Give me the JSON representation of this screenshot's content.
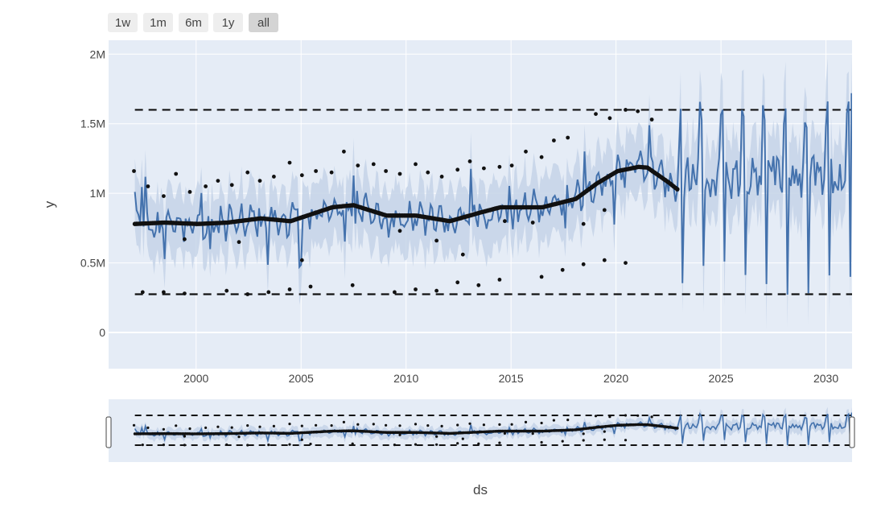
{
  "range_selector": {
    "buttons": [
      {
        "label": "1w",
        "active": false
      },
      {
        "label": "1m",
        "active": false
      },
      {
        "label": "6m",
        "active": false
      },
      {
        "label": "1y",
        "active": false
      },
      {
        "label": "all",
        "active": true
      }
    ]
  },
  "colors": {
    "plot_bg": "#e5ecf6",
    "grid": "#ffffff",
    "forecast_line": "#4472ad",
    "uncertainty_band": "#c6d3e8",
    "observed_points": "#111111",
    "capacity_lines": "#111111",
    "button_bg": "#eeeeee",
    "button_active_bg": "#d4d4d4",
    "text": "#444444"
  },
  "chart_data": {
    "type": "line",
    "title": "",
    "xlabel": "ds",
    "ylabel": "y",
    "x_type": "date",
    "xlim": [
      "1995-11-01",
      "2031-03-31"
    ],
    "ylim": [
      -260000,
      2100000
    ],
    "x_ticks": [
      "2000",
      "2005",
      "2010",
      "2015",
      "2020",
      "2025",
      "2030"
    ],
    "y_ticks": [
      {
        "value": 0,
        "label": "0"
      },
      {
        "value": 500000,
        "label": "0.5M"
      },
      {
        "value": 1000000,
        "label": "1M"
      },
      {
        "value": 1500000,
        "label": "1.5M"
      },
      {
        "value": 2000000,
        "label": "2M"
      }
    ],
    "grid": true,
    "legend": "none",
    "cap": 1600000,
    "floor": 275000,
    "history_start": "1997-01-31",
    "history_end": "2022-12-31",
    "forecast_end": "2031-03-31",
    "trend_knots": [
      [
        "1997-01-31",
        780000
      ],
      [
        "1998-06-30",
        790000
      ],
      [
        "2000-01-31",
        780000
      ],
      [
        "2001-06-30",
        790000
      ],
      [
        "2003-01-31",
        820000
      ],
      [
        "2004-06-30",
        800000
      ],
      [
        "2005-06-30",
        850000
      ],
      [
        "2006-06-30",
        900000
      ],
      [
        "2007-06-30",
        915000
      ],
      [
        "2009-01-31",
        840000
      ],
      [
        "2010-06-30",
        840000
      ],
      [
        "2012-01-31",
        800000
      ],
      [
        "2013-06-30",
        860000
      ],
      [
        "2014-06-30",
        900000
      ],
      [
        "2016-06-30",
        900000
      ],
      [
        "2018-01-31",
        960000
      ],
      [
        "2019-01-31",
        1070000
      ],
      [
        "2020-01-31",
        1160000
      ],
      [
        "2021-01-31",
        1190000
      ],
      [
        "2021-06-30",
        1185000
      ],
      [
        "2022-06-30",
        1080000
      ],
      [
        "2022-12-31",
        1020000
      ]
    ],
    "annual_peaks": [
      [
        "1997-01-15",
        1160000
      ],
      [
        "1997-09-15",
        1050000
      ],
      [
        "1998-06-15",
        980000
      ],
      [
        "1999-01-15",
        1140000
      ],
      [
        "1999-09-15",
        1010000
      ],
      [
        "2000-06-15",
        1050000
      ],
      [
        "2001-01-15",
        1090000
      ],
      [
        "2001-09-15",
        1060000
      ],
      [
        "2002-06-15",
        1150000
      ],
      [
        "2003-01-15",
        1090000
      ],
      [
        "2003-09-15",
        1120000
      ],
      [
        "2004-06-15",
        1220000
      ],
      [
        "2005-01-15",
        1130000
      ],
      [
        "2005-09-15",
        1160000
      ],
      [
        "2006-06-15",
        1150000
      ],
      [
        "2007-01-15",
        1300000
      ],
      [
        "2007-09-15",
        1200000
      ],
      [
        "2008-06-15",
        1210000
      ],
      [
        "2009-01-15",
        1160000
      ],
      [
        "2009-09-15",
        1140000
      ],
      [
        "2010-06-15",
        1210000
      ],
      [
        "2011-01-15",
        1150000
      ],
      [
        "2011-09-15",
        1120000
      ],
      [
        "2012-06-15",
        1170000
      ],
      [
        "2013-01-15",
        1230000
      ],
      [
        "2013-09-15",
        1180000
      ],
      [
        "2014-06-15",
        1190000
      ],
      [
        "2015-01-15",
        1200000
      ],
      [
        "2015-09-15",
        1300000
      ],
      [
        "2016-06-15",
        1260000
      ],
      [
        "2017-01-15",
        1380000
      ],
      [
        "2017-09-15",
        1400000
      ],
      [
        "2019-01-15",
        1570000
      ],
      [
        "2019-09-15",
        1540000
      ],
      [
        "2020-06-15",
        1600000
      ],
      [
        "2021-01-15",
        1590000
      ],
      [
        "2021-09-15",
        1530000
      ]
    ],
    "annual_troughs": [
      [
        "1997-06-15",
        290000
      ],
      [
        "1998-06-15",
        290000
      ],
      [
        "1999-06-15",
        280000
      ],
      [
        "2001-06-15",
        300000
      ],
      [
        "2002-06-15",
        275000
      ],
      [
        "2003-06-15",
        290000
      ],
      [
        "2004-06-15",
        310000
      ],
      [
        "2005-06-15",
        330000
      ],
      [
        "2007-06-15",
        340000
      ],
      [
        "2009-06-15",
        290000
      ],
      [
        "2010-06-15",
        310000
      ],
      [
        "2011-06-15",
        300000
      ],
      [
        "2012-06-15",
        360000
      ],
      [
        "2013-06-15",
        340000
      ],
      [
        "2014-06-15",
        380000
      ],
      [
        "2016-06-15",
        400000
      ],
      [
        "2017-06-15",
        450000
      ],
      [
        "2018-06-15",
        490000
      ],
      [
        "2019-06-15",
        520000
      ],
      [
        "2020-06-15",
        500000
      ]
    ],
    "mid_outliers": [
      [
        "1999-06-15",
        670000
      ],
      [
        "2002-01-15",
        650000
      ],
      [
        "2005-01-15",
        520000
      ],
      [
        "2009-09-15",
        730000
      ],
      [
        "2011-06-15",
        660000
      ],
      [
        "2012-09-15",
        560000
      ],
      [
        "2014-09-15",
        800000
      ],
      [
        "2016-01-15",
        790000
      ],
      [
        "2018-06-15",
        780000
      ],
      [
        "2019-06-15",
        880000
      ]
    ]
  }
}
